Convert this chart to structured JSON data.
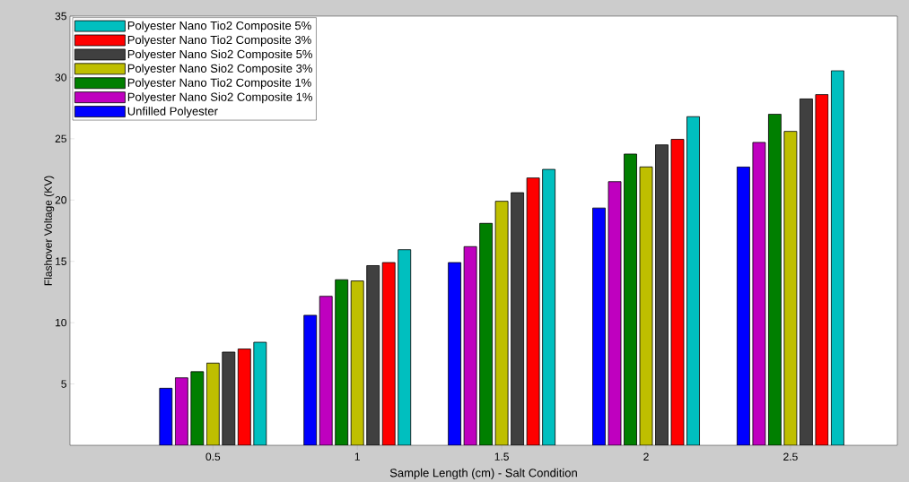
{
  "chart_data": {
    "type": "bar",
    "xlabel": "Sample Length (cm) - Salt Condition",
    "ylabel": "Flashover Voltage (KV)",
    "categories": [
      "0.5",
      "1",
      "1.5",
      "2",
      "2.5"
    ],
    "series": [
      {
        "name": "Unfilled Polyester",
        "color": "#0000ff",
        "values": [
          4.65,
          10.6,
          14.9,
          19.35,
          22.7
        ]
      },
      {
        "name": "Polyester Nano Sio2 Composite 1%",
        "color": "#bf00bf",
        "values": [
          5.5,
          12.15,
          16.2,
          21.5,
          24.7
        ]
      },
      {
        "name": "Polyester Nano Tio2 Composite 1%",
        "color": "#007f00",
        "values": [
          6.0,
          13.5,
          18.1,
          23.75,
          27.0
        ]
      },
      {
        "name": "Polyester Nano Sio2 Composite 3%",
        "color": "#bfbf00",
        "values": [
          6.7,
          13.4,
          19.9,
          22.7,
          25.6
        ]
      },
      {
        "name": "Polyester Nano Sio2 Composite 5%",
        "color": "#404040",
        "values": [
          7.6,
          14.65,
          20.6,
          24.5,
          28.25
        ]
      },
      {
        "name": "Polyester Nano Tio2 Composite 3%",
        "color": "#ff0000",
        "values": [
          7.85,
          14.9,
          21.8,
          24.95,
          28.6
        ]
      },
      {
        "name": "Polyester Nano Tio2 Composite 5%",
        "color": "#00bfbf",
        "values": [
          8.4,
          15.95,
          22.5,
          26.8,
          30.55
        ]
      }
    ],
    "ylim": [
      0,
      35
    ],
    "yticks": [
      5,
      10,
      15,
      20,
      25,
      30,
      35
    ],
    "grid": false,
    "legend": "top left"
  }
}
